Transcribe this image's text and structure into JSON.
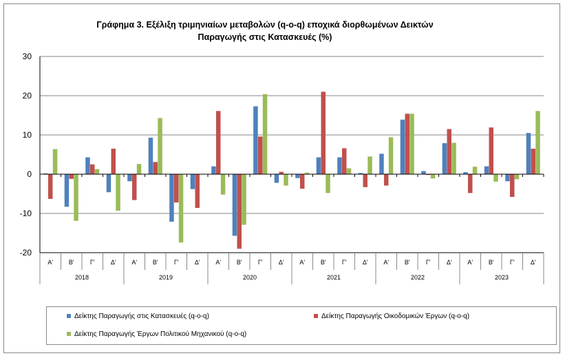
{
  "chart_data": {
    "type": "bar",
    "title": [
      "Γράφημα 3. Εξέλιξη τριμηνιαίων μεταβολών (q-o-q) εποχικά διορθωμένων Δεικτών",
      "Παραγωγής στις Κατασκευές (%)"
    ],
    "years": [
      "2018",
      "2019",
      "2020",
      "2021",
      "2022",
      "2023"
    ],
    "quarters": [
      "Α'",
      "Β'",
      "Γ'",
      "Δ'"
    ],
    "ylim": [
      -20,
      30
    ],
    "yticks": [
      -20,
      -10,
      0,
      10,
      20,
      30
    ],
    "grid": true,
    "legend_position": "bottom",
    "series": [
      {
        "name": "Δείκτης Παραγωγής στις Κατασκευές (q-o-q)",
        "color": "#4f81bd",
        "values": [
          0.2,
          -8.3,
          4.3,
          -4.6,
          -1.8,
          9.3,
          -12.1,
          -3.8,
          2.0,
          -15.7,
          17.3,
          -2.2,
          -1.0,
          4.3,
          4.3,
          0.3,
          5.2,
          13.9,
          0.8,
          7.9,
          0.5,
          2.0,
          -1.8,
          10.5
        ]
      },
      {
        "name": "Δείκτης Παραγωγής Οικοδομικών Έργων (q-o-q)",
        "color": "#c0504d",
        "values": [
          -6.3,
          -1.2,
          2.5,
          6.5,
          -6.6,
          3.1,
          -7.2,
          -8.6,
          16.1,
          -19.0,
          9.6,
          0.6,
          -3.7,
          21.0,
          6.6,
          -3.3,
          -2.9,
          15.4,
          -0.2,
          11.5,
          -4.8,
          11.9,
          -5.8,
          6.5
        ]
      },
      {
        "name": "Δείκτης Παραγωγής Έργων Πολιτικού Μηχανικού (q-o-q)",
        "color": "#9bbb59",
        "values": [
          6.4,
          -11.9,
          1.3,
          -9.3,
          2.6,
          14.3,
          -17.4,
          0,
          -5.2,
          -12.9,
          20.4,
          -2.9,
          0.4,
          -4.8,
          1.5,
          4.5,
          9.4,
          15.4,
          -1.1,
          8.0,
          1.9,
          -1.9,
          -1.3,
          16.1
        ]
      }
    ]
  }
}
